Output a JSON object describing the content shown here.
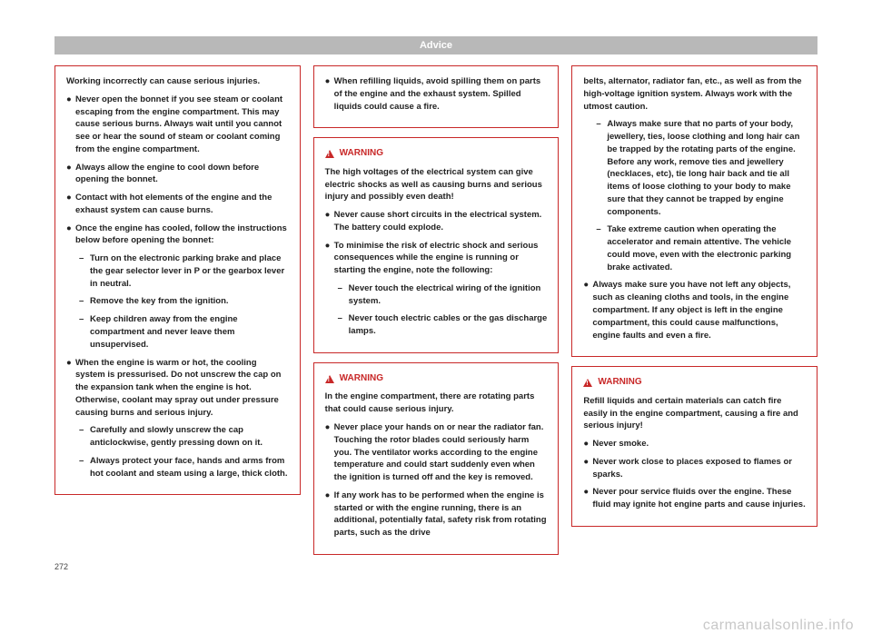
{
  "header": "Advice",
  "pageNumber": "272",
  "watermark": "carmanualsonline.info",
  "colors": {
    "accent": "#c82828",
    "headerBg": "#b8b8b8"
  },
  "col1": {
    "box1": {
      "p1": "Working incorrectly can cause serious injuries.",
      "b1": "Never open the bonnet if you see steam or coolant escaping from the engine compartment. This may cause serious burns. Always wait until you cannot see or hear the sound of steam or coolant coming from the engine compartment.",
      "b2": "Always allow the engine to cool down before opening the bonnet.",
      "b3": "Contact with hot elements of the engine and the exhaust system can cause burns.",
      "b4": "Once the engine has cooled, follow the instructions below before opening the bonnet:",
      "s1": "Turn on the electronic parking brake and place the gear selector lever in P or the gearbox lever in neutral.",
      "s2": "Remove the key from the ignition.",
      "s3": "Keep children away from the engine compartment and never leave them unsupervised.",
      "b5": "When the engine is warm or hot, the cooling system is pressurised. Do not unscrew the cap on the expansion tank when the engine is hot. Otherwise, coolant may spray out under pressure causing burns and serious injury.",
      "s4": "Carefully and slowly unscrew the cap anticlockwise, gently pressing down on it.",
      "s5": "Always protect your face, hands and arms from hot coolant and steam using a large, thick cloth."
    }
  },
  "col2": {
    "box1": {
      "b1": "When refilling liquids, avoid spilling them on parts of the engine and the exhaust system. Spilled liquids could cause a fire."
    },
    "box2": {
      "title": "WARNING",
      "p1": "The high voltages of the electrical system can give electric shocks as well as causing burns and serious injury and possibly even death!",
      "b1": "Never cause short circuits in the electrical system. The battery could explode.",
      "b2": "To minimise the risk of electric shock and serious consequences while the engine is running or starting the engine, note the following:",
      "s1": "Never touch the electrical wiring of the ignition system.",
      "s2": "Never touch electric cables or the gas discharge lamps."
    },
    "box3": {
      "title": "WARNING",
      "p1": "In the engine compartment, there are rotating parts that could cause serious injury.",
      "b1": "Never place your hands on or near the radiator fan. Touching the rotor blades could seriously harm you. The ventilator works according to the engine temperature and could start suddenly even when the ignition is turned off and the key is removed.",
      "b2": "If any work has to be performed when the engine is started or with the engine running, there is an additional, potentially fatal, safety risk from rotating parts, such as the drive"
    }
  },
  "col3": {
    "box1": {
      "p1": "belts, alternator, radiator fan, etc., as well as from the high-voltage ignition system. Always work with the utmost caution.",
      "s1": "Always make sure that no parts of your body, jewellery, ties, loose clothing and long hair can be trapped by the rotating parts of the engine. Before any work, remove ties and jewellery (necklaces, etc), tie long hair back and tie all items of loose clothing to your body to make sure that they cannot be trapped by engine components.",
      "s2": "Take extreme caution when operating the accelerator and remain attentive. The vehicle could move, even with the electronic parking brake activated.",
      "b1": "Always make sure you have not left any objects, such as cleaning cloths and tools, in the engine compartment. If any object is left in the engine compartment, this could cause malfunctions, engine faults and even a fire."
    },
    "box2": {
      "title": "WARNING",
      "p1": "Refill liquids and certain materials can catch fire easily in the engine compartment, causing a fire and serious injury!",
      "b1": "Never smoke.",
      "b2": "Never work close to places exposed to flames or sparks.",
      "b3": "Never pour service fluids over the engine. These fluid may ignite hot engine parts and cause injuries."
    }
  }
}
